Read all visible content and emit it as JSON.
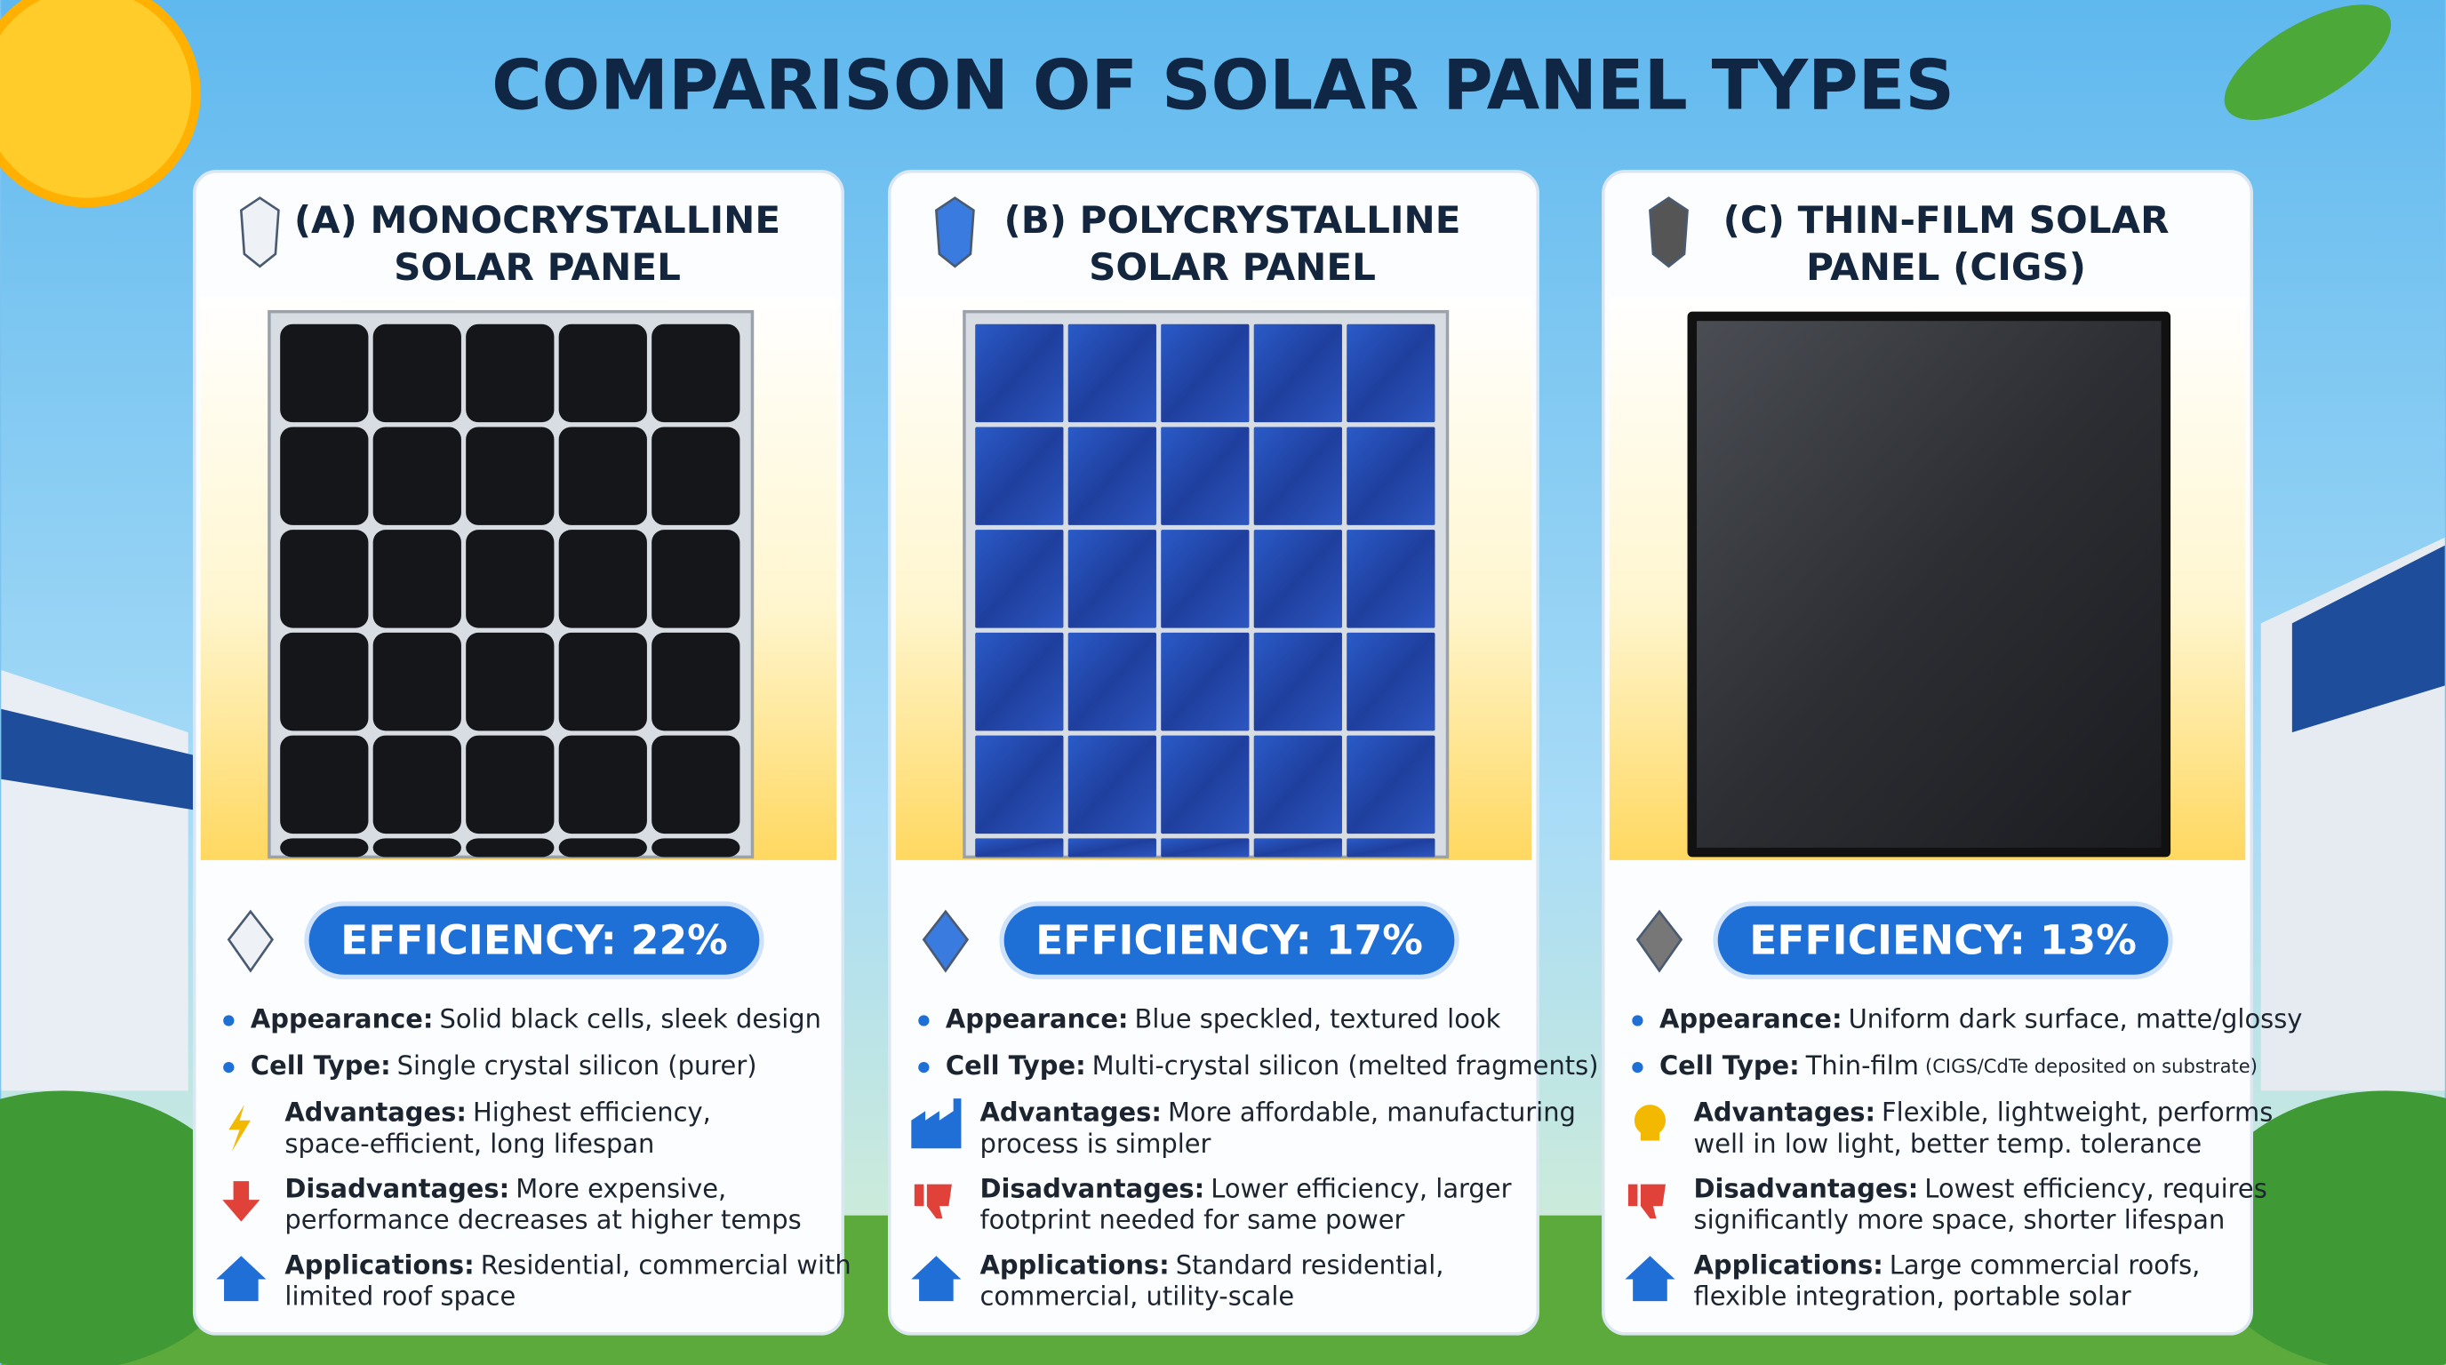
{
  "header": {
    "title": "COMPARISON OF SOLAR PANEL TYPES"
  },
  "panels": [
    {
      "title": [
        "(A) MONOCRYSTALLINE",
        "SOLAR PANEL"
      ],
      "efficiency": "EFFICIENCY: 22%",
      "items": [
        {
          "label": "Appearance:",
          "text": [
            "Solid black cells, sleek design"
          ]
        },
        {
          "label": "Cell Type:",
          "text": [
            "Single crystal silicon (purer)"
          ]
        },
        {
          "label": "Advantages:",
          "text": [
            "Highest efficiency,",
            "space-efficient, long lifespan"
          ]
        },
        {
          "label": "Disadvantages:",
          "text": [
            "More expensive,",
            "performance decreases at higher temps"
          ]
        },
        {
          "label": "Applications:",
          "text": [
            "Residential, commercial with",
            "limited roof space"
          ]
        }
      ]
    },
    {
      "title": [
        "(B) POLYCRYSTALLINE",
        "SOLAR PANEL"
      ],
      "efficiency": "EFFICIENCY: 17%",
      "items": [
        {
          "label": "Appearance:",
          "text": [
            "Blue speckled, textured look"
          ]
        },
        {
          "label": "Cell Type:",
          "text": [
            "Multi-crystal silicon (melted fragments)"
          ]
        },
        {
          "label": "Advantages:",
          "text": [
            "More affordable, manufacturing",
            "process is simpler"
          ]
        },
        {
          "label": "Disadvantages:",
          "text": [
            "Lower efficiency, larger",
            "footprint needed for same power"
          ]
        },
        {
          "label": "Applications:",
          "text": [
            "Standard residential,",
            "commercial, utility-scale"
          ]
        }
      ]
    },
    {
      "title": [
        "(C) THIN-FILM SOLAR",
        "PANEL (CIGS)"
      ],
      "efficiency": "EFFICIENCY: 13%",
      "items": [
        {
          "label": "Appearance:",
          "text": [
            "Uniform dark surface, matte/glossy"
          ]
        },
        {
          "label": "Cell Type:",
          "text": [
            "Thin-film"
          ],
          "note": "(CIGS/CdTe deposited on substrate)"
        },
        {
          "label": "Advantages:",
          "text": [
            "Flexible, lightweight, performs",
            "well in low light, better temp. tolerance"
          ]
        },
        {
          "label": "Disadvantages:",
          "text": [
            "Lowest efficiency, requires",
            "significantly more space, shorter lifespan"
          ]
        },
        {
          "label": "Applications:",
          "text": [
            "Large commercial roofs,",
            "flexible integration, portable solar"
          ]
        }
      ]
    }
  ]
}
